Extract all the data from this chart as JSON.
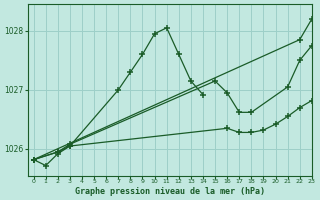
{
  "title": "Graphe pression niveau de la mer (hPa)",
  "bg_color": "#c2e8e0",
  "grid_color": "#9dcfc8",
  "line_color": "#1a5c28",
  "ylim": [
    1025.55,
    1028.45
  ],
  "xlim": [
    -0.5,
    23
  ],
  "yticks": [
    1026,
    1027,
    1028
  ],
  "xticks": [
    0,
    1,
    2,
    3,
    4,
    5,
    6,
    7,
    8,
    9,
    10,
    11,
    12,
    13,
    14,
    15,
    16,
    17,
    18,
    19,
    20,
    21,
    22,
    23
  ],
  "series": [
    {
      "comment": "steep peak line: 0->1->2->3->7->8->9->10->11->12->13->14",
      "x": [
        0,
        1,
        2,
        3,
        7,
        8,
        9,
        10,
        11,
        12,
        13,
        14
      ],
      "y": [
        1025.82,
        1025.72,
        1025.92,
        1026.05,
        1027.0,
        1027.3,
        1027.6,
        1027.95,
        1028.05,
        1027.6,
        1027.15,
        1026.92
      ]
    },
    {
      "x": [
        0,
        22,
        23
      ],
      "y": [
        1025.82,
        1027.85,
        1028.2
      ]
    },
    {
      "comment": "medium line with dip around 16-18: 0->2->3->16->17->18->21->22->23",
      "x": [
        0,
        2,
        3,
        15,
        16,
        17,
        18,
        21,
        22,
        23
      ],
      "y": [
        1025.82,
        1025.95,
        1026.08,
        1027.15,
        1026.95,
        1026.62,
        1026.62,
        1027.05,
        1027.5,
        1027.75
      ]
    },
    {
      "comment": "lower gradual line: 0->2->3->16->17->18->19->20->21->22->23",
      "x": [
        0,
        2,
        3,
        16,
        17,
        18,
        19,
        20,
        21,
        22,
        23
      ],
      "y": [
        1025.82,
        1025.95,
        1026.05,
        1026.35,
        1026.28,
        1026.28,
        1026.32,
        1026.42,
        1026.55,
        1026.7,
        1026.82
      ]
    }
  ]
}
